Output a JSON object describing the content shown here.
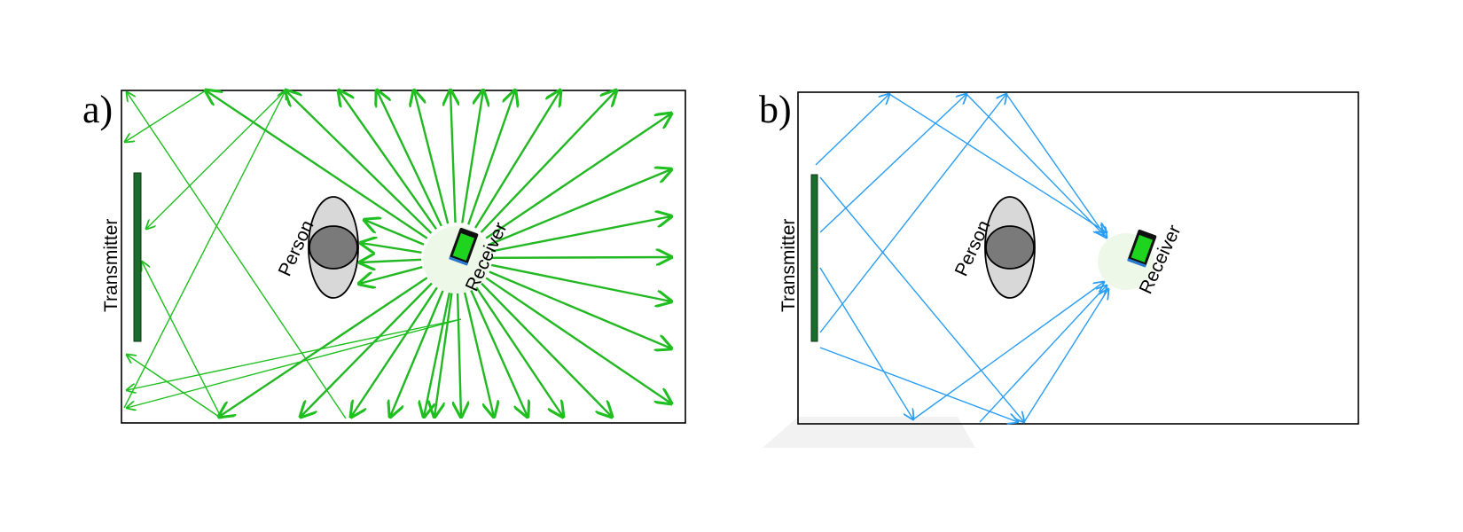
{
  "panels": [
    {
      "id": "a",
      "label": "a)",
      "transmitter_label": "Transmitter",
      "person_label": "Person",
      "receiver_label": "Receiver",
      "ray_color": "#1fbf1f",
      "ray_color_strong": "#22b822"
    },
    {
      "id": "b",
      "label": "b)",
      "transmitter_label": "Transmitter",
      "person_label": "Person",
      "receiver_label": "Receiver",
      "ray_color": "#2a9df4"
    }
  ],
  "colors": {
    "transmitter": "#1b6b2c",
    "person_outer": "#d8d8d8",
    "person_inner": "#7a7a7a",
    "phone_screen": "#1ed41e",
    "phone_body": "#111111",
    "phone_edge": "#2a7bd4",
    "receiver_glow": "#eef8e8"
  }
}
